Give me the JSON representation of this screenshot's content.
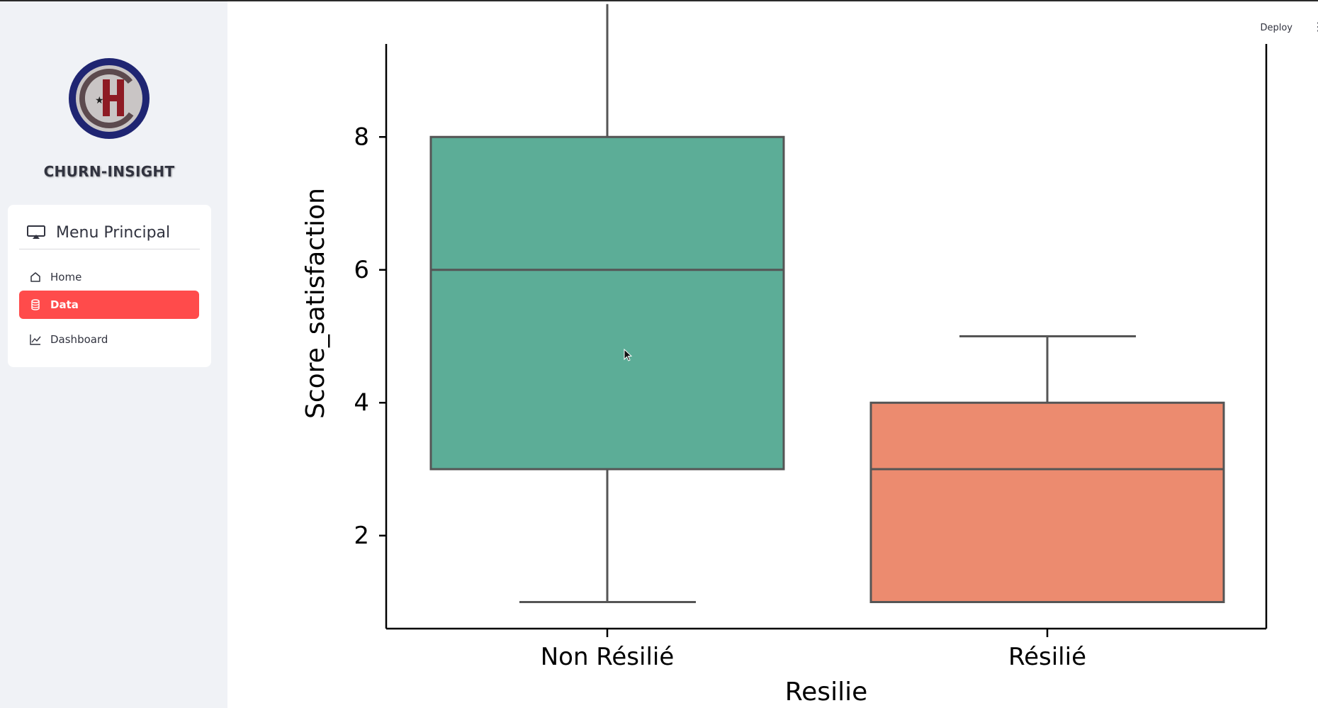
{
  "app": {
    "name": "CHURN-INSIGHT"
  },
  "menu": {
    "title": "Menu Principal",
    "items": [
      {
        "label": "Home",
        "icon": "house-icon",
        "active": false
      },
      {
        "label": "Data",
        "icon": "database-icon",
        "active": true
      },
      {
        "label": "Dashboard",
        "icon": "line-chart-icon",
        "active": false
      }
    ]
  },
  "toolbar": {
    "deploy_label": "Deploy",
    "menu_icon": "vertical-dots-icon"
  },
  "colors": {
    "accent": "#ff4b4b",
    "sidebar_bg": "#f0f2f6",
    "box_non_resilie": "#5cad97",
    "box_resilie": "#ec8b6f"
  },
  "chart_data": {
    "type": "box",
    "xlabel": "Resilie",
    "ylabel": "Score_satisfaction",
    "categories": [
      "Non Résilié",
      "Résilié"
    ],
    "boxes": [
      {
        "category": "Non Résilié",
        "min": 1,
        "q1": 3,
        "median": 6,
        "q3": 8,
        "max": 10
      },
      {
        "category": "Résilié",
        "min": 1,
        "q1": 1,
        "median": 3,
        "q3": 4,
        "max": 5
      }
    ],
    "yticks": [
      "2",
      "4",
      "6",
      "8"
    ],
    "ylim": [
      0.6,
      9.4
    ],
    "grid": false,
    "legend": "none"
  }
}
